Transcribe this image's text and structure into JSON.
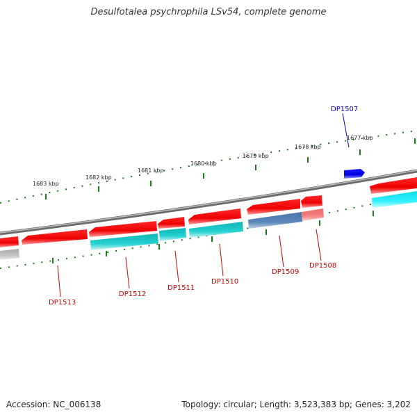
{
  "title": "Desulfotalea psychrophila LSv54, complete genome",
  "footer": {
    "accession": "Accession: NC_006138",
    "summary": "Topology: circular; Length: 3,523,383 bp; Genes: 3,202"
  },
  "scale_labels": [
    "1683 kbp",
    "1682 kbp",
    "1681 kbp",
    "1680 kbp",
    "1679 kbp",
    "1678 kbp",
    "1677 kbp"
  ],
  "genes": [
    "DP1513",
    "DP1512",
    "DP1511",
    "DP1510",
    "DP1509",
    "DP1508",
    "DP1507"
  ],
  "colors": {
    "plus_strand": "#ff1010",
    "minus_strand_red": "#ff1010",
    "cyan": "#20c8c8",
    "steel_blue": "#4f7fb0",
    "salmon": "#f07070",
    "blue": "#1010e0",
    "gene_label_red": "#cc0000",
    "gene_label_blue": "#0000cc",
    "tick_green": "#1a7a1a",
    "backbone": "#888888"
  }
}
